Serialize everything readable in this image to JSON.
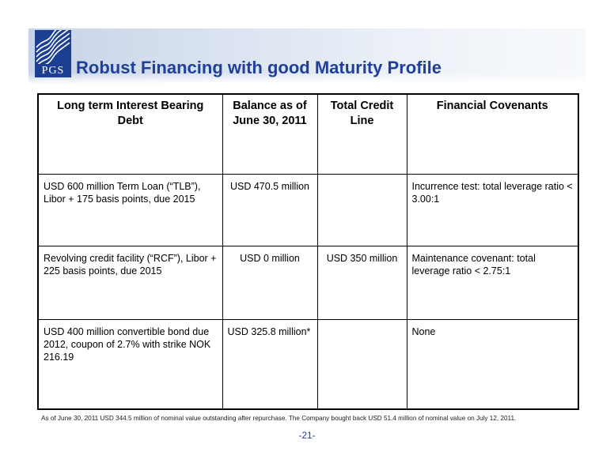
{
  "header": {
    "logo_text": "PGS",
    "title": "Robust Financing with good Maturity Profile"
  },
  "table": {
    "columns": [
      "Long term Interest Bearing Debt",
      "Balance as of June 30, 2011",
      "Total Credit Line",
      "Financial Covenants"
    ],
    "rows": [
      {
        "debt": "USD 600 million Term Loan (“TLB”), Libor + 175 basis points, due 2015",
        "balance": "USD 470.5 million",
        "credit_line": "",
        "covenants": "Incurrence test: total leverage ratio < 3.00:1"
      },
      {
        "debt": "Revolving credit facility (“RCF”), Libor + 225 basis points, due 2015",
        "balance": "USD 0 million",
        "credit_line": "USD 350 million",
        "covenants": "Maintenance covenant: total leverage ratio < 2.75:1"
      },
      {
        "debt": "USD 400 million convertible bond due 2012, coupon of 2.7% with strike NOK 216.19",
        "balance": "USD 325.8 million*",
        "credit_line": "",
        "covenants": "None"
      }
    ]
  },
  "footnote": "As of June 30, 2011 USD 344.5 million of nominal value outstanding after repurchase. The Company bought back USD 51.4 million  of nominal value  on July 12, 2011.",
  "page_number": "-21-",
  "colors": {
    "title": "#1f3f9a",
    "logo_bg": "#1c3f94",
    "header_band": "#c7d3e8"
  }
}
